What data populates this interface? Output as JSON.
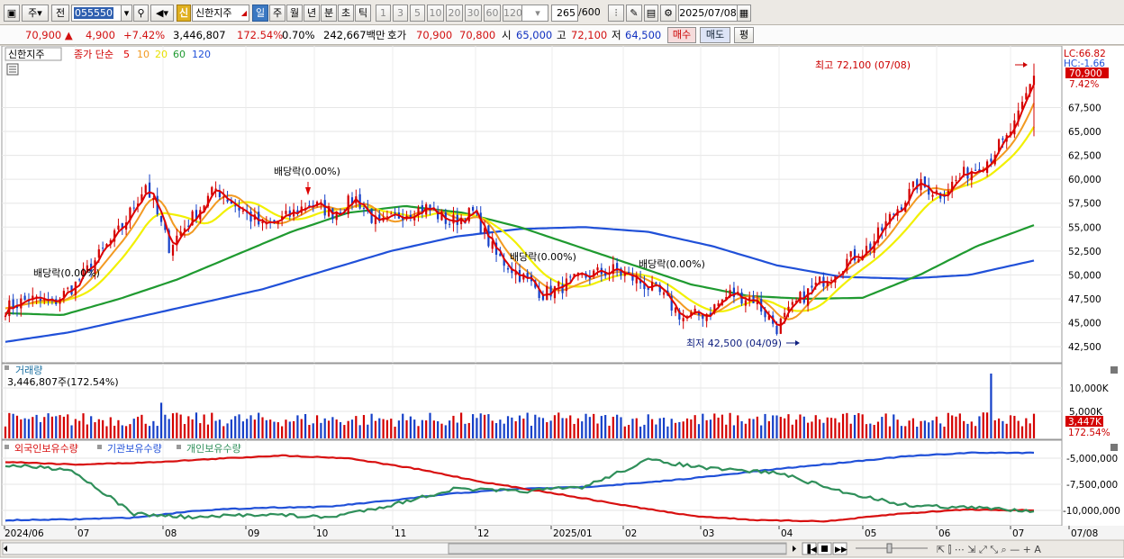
{
  "toolbar": {
    "market_btn": "주",
    "prev_btn": "전",
    "stock_code": "055550",
    "shin_badge": "신",
    "stock_name": "신한지주",
    "periods": [
      "일",
      "주",
      "월",
      "년",
      "분",
      "초",
      "틱"
    ],
    "active_period": "일",
    "intervals": [
      "1",
      "3",
      "5",
      "10",
      "20",
      "30",
      "60",
      "120"
    ],
    "bar_count": "265",
    "bar_total": "/600",
    "date": "2025/07/08"
  },
  "quote": {
    "price": "70,900",
    "change": "4,900",
    "change_pct": "+7.42%",
    "volume": "3,446,807",
    "volume_ratio": "172.54%",
    "turnover_rate": "0.70%",
    "amount": "242,667백만",
    "ask_label": "호가",
    "ask": "70,900",
    "bid": "70,800",
    "open_label": "시",
    "open": "65,000",
    "high_label": "고",
    "high": "72,100",
    "low_label": "저",
    "low": "64,500",
    "buy_btn": "매수",
    "sell_btn": "매도",
    "eval_btn": "평"
  },
  "legend": {
    "stock": "신한지주",
    "ma_label": "종가 단순",
    "ma_periods": [
      "5",
      "10",
      "20",
      "60",
      "120"
    ],
    "ma_colors": [
      "#dd0000",
      "#f29a22",
      "#f2f000",
      "#1f9a30",
      "#2050d8"
    ]
  },
  "price_panel": {
    "lc": "LC:66.82",
    "hc": "HC:-1.66",
    "current": "70,900",
    "current_pct": "7.42%",
    "high_note": "최고 72,100 (07/08)",
    "low_note": "최저 42,500 (04/09)",
    "dividend_labels": [
      "배당락(0.00%)",
      "배당락(0.00%)",
      "배당락(0.00%)",
      "배당락(0.00%)"
    ]
  },
  "volume_panel": {
    "title": "거래량",
    "value": "3,446,807주(172.54%)",
    "current": "3,447K",
    "current_pct": "172.54%",
    "ticks": [
      "10,000K",
      "5,000K"
    ]
  },
  "holdings_panel": {
    "series": [
      "외국인보유수량",
      "기관보유수량",
      "개인보유수량"
    ],
    "colors": [
      "#d81010",
      "#2050d8",
      "#2f8f5a"
    ],
    "ticks": [
      "-5,000,000",
      "-7,500,000",
      "-10,000,000"
    ]
  },
  "x_axis": [
    "2024/06",
    "07",
    "08",
    "09",
    "10",
    "11",
    "12",
    "2025/01",
    "02",
    "03",
    "04",
    "05",
    "06",
    "07",
    "07/08"
  ],
  "chart_data": {
    "type": "candlestick",
    "title": "신한지주",
    "y_ticks": [
      42500,
      45000,
      47500,
      50000,
      52500,
      55000,
      57500,
      60000,
      62500,
      65000,
      67500,
      70000
    ],
    "ylim": [
      41000,
      73000
    ],
    "months": [
      "2024/06",
      "07",
      "08",
      "09",
      "10",
      "11",
      "12",
      "2025/01",
      "02",
      "03",
      "04",
      "05",
      "06",
      "07"
    ],
    "close_path": [
      46500,
      47500,
      47000,
      49000,
      52000,
      55000,
      59500,
      53000,
      56000,
      59000,
      57000,
      55000,
      56000,
      57500,
      56500,
      58000,
      55000,
      56500,
      57000,
      55500,
      56500,
      52000,
      50000,
      48000,
      49000,
      50000,
      50500,
      49500,
      48000,
      45500,
      46000,
      48000,
      47500,
      44500,
      47500,
      49500,
      51500,
      53000,
      56500,
      59500,
      58500,
      60500,
      62000,
      65000,
      70900
    ],
    "ma120": [
      43000,
      44000,
      45500,
      47000,
      48500,
      50500,
      52500,
      54000,
      54800,
      55000,
      54500,
      53000,
      51000,
      49800,
      49600,
      50000,
      51500
    ],
    "ma60": [
      46000,
      45800,
      47500,
      49500,
      52000,
      54500,
      56500,
      57200,
      56500,
      55000,
      53000,
      51000,
      49000,
      47800,
      47500,
      47600,
      50000,
      53000,
      55200
    ],
    "high": 72100,
    "high_date": "07/08",
    "low": 42500,
    "low_date": "04/09"
  }
}
